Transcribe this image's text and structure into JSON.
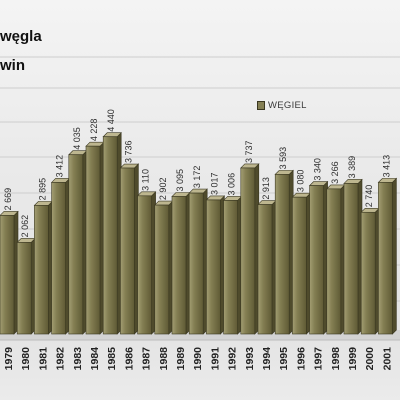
{
  "chart_data": {
    "type": "bar",
    "title_lines": [
      "węgla",
      "win"
    ],
    "categories": [
      "1979",
      "1980",
      "1981",
      "1982",
      "1983",
      "1984",
      "1985",
      "1986",
      "1987",
      "1988",
      "1989",
      "1990",
      "1991",
      "1992",
      "1993",
      "1994",
      "1995",
      "1996",
      "1997",
      "1998",
      "1999",
      "2000",
      "2001"
    ],
    "series": [
      {
        "name": "WĘGIEL",
        "values": [
          2669,
          2062,
          2895,
          3412,
          4035,
          4228,
          4440,
          3736,
          3110,
          2902,
          3095,
          3172,
          3017,
          3006,
          3737,
          2913,
          3593,
          3080,
          3340,
          3266,
          3389,
          2740,
          3413
        ],
        "value_labels": [
          "2 669",
          "2 062",
          "2 895",
          "3 412",
          "4 035",
          "4 228",
          "4 440",
          "3 736",
          "3 110",
          "2 902",
          "3 095",
          "3 172",
          "3 017",
          "3 006",
          "3 737",
          "2 913",
          "3 593",
          "3 080",
          "3 340",
          "3 266",
          "3 389",
          "2 740",
          "3 413"
        ]
      }
    ],
    "ylim": [
      0,
      7000
    ],
    "grid": true,
    "legend_position": "top-right"
  },
  "colors": {
    "bar_front_light": "#a39e73",
    "bar_front_mid": "#847f53",
    "bar_front_dark": "#5f5a35",
    "bar_top": "#bdb68f",
    "bar_side": "#4f4b2c",
    "bar_outline": "#3a3720",
    "gridline": "#cdcdcd",
    "floor": "#d3d3d3",
    "floor_edge": "#bcbcbc",
    "label_text": "#2e2e2e",
    "axis_text": "#222222"
  }
}
